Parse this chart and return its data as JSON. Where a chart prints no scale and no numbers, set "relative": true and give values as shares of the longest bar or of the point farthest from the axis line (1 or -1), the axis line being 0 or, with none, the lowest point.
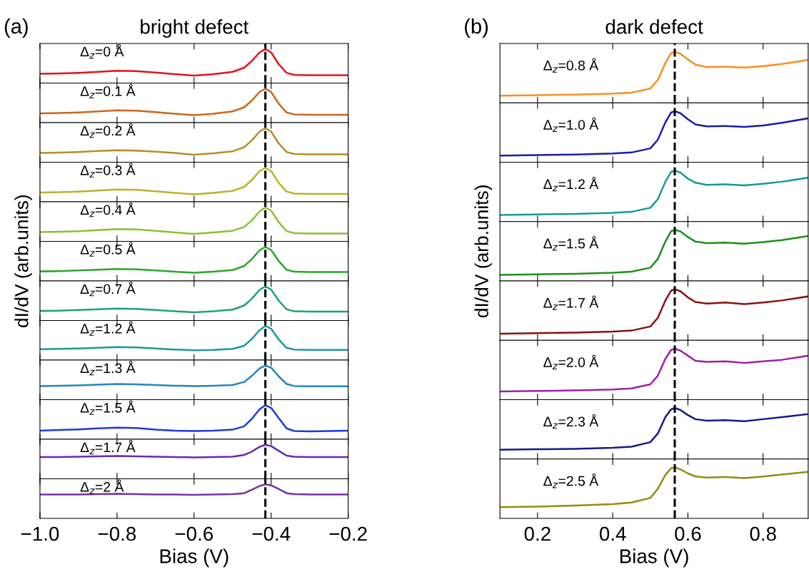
{
  "chart_data": [
    {
      "type": "line",
      "title": "(a)",
      "subtitle": "bright defect",
      "relative": true,
      "color": "#e3141c",
      "annotations": [
        "Δ$_{z}$=0 Å"
      ],
      "tick_labels": false,
      "xlim": [
        -1.0,
        -0.2
      ],
      "xticks": [
        {
          "value": -1.0,
          "label": null
        },
        {
          "value": -0.8,
          "label": null
        },
        {
          "value": -0.6,
          "label": null
        },
        {
          "value": -0.4,
          "label": null
        },
        {
          "value": -0.2,
          "label": null
        }
      ],
      "ref_lines": [
        {
          "axis": "x",
          "value": -0.415,
          "label": null,
          "color": "#000000",
          "line_style": "dashed"
        }
      ],
      "x": [
        -1.0,
        -0.95,
        -0.9,
        -0.85,
        -0.8,
        -0.75,
        -0.7,
        -0.65,
        -0.6,
        -0.55,
        -0.5,
        -0.47,
        -0.45,
        -0.43,
        -0.415,
        -0.4,
        -0.38,
        -0.36,
        -0.34,
        -0.3,
        -0.25,
        -0.2
      ],
      "values": [
        0.27,
        0.28,
        0.3,
        0.33,
        0.36,
        0.35,
        0.31,
        0.26,
        0.22,
        0.26,
        0.33,
        0.45,
        0.65,
        0.9,
        1.0,
        0.9,
        0.55,
        0.3,
        0.24,
        0.23,
        0.23,
        0.23
      ]
    },
    {
      "type": "line",
      "relative": true,
      "color": "#c8681e",
      "annotations": [
        "Δ$_{z}$=0.1 Å"
      ],
      "tick_labels": false,
      "xlim": [
        -1.0,
        -0.2
      ],
      "xticks": [
        {
          "value": -1.0,
          "label": null
        },
        {
          "value": -0.8,
          "label": null
        },
        {
          "value": -0.6,
          "label": null
        },
        {
          "value": -0.4,
          "label": null
        },
        {
          "value": -0.2,
          "label": null
        }
      ],
      "ref_lines": [
        {
          "axis": "x",
          "value": -0.415,
          "label": null,
          "color": "#000000",
          "line_style": "dashed"
        }
      ],
      "x": [
        -1.0,
        -0.95,
        -0.9,
        -0.85,
        -0.8,
        -0.75,
        -0.7,
        -0.65,
        -0.6,
        -0.55,
        -0.5,
        -0.47,
        -0.45,
        -0.43,
        -0.415,
        -0.4,
        -0.38,
        -0.36,
        -0.34,
        -0.3,
        -0.25,
        -0.2
      ],
      "values": [
        0.27,
        0.28,
        0.3,
        0.33,
        0.36,
        0.35,
        0.31,
        0.26,
        0.22,
        0.26,
        0.33,
        0.45,
        0.65,
        0.9,
        1.0,
        0.9,
        0.55,
        0.3,
        0.24,
        0.23,
        0.23,
        0.23
      ]
    },
    {
      "type": "line",
      "relative": true,
      "color": "#b88c2a",
      "annotations": [
        "Δ$_{z}$=0.2 Å"
      ],
      "tick_labels": false,
      "xlim": [
        -1.0,
        -0.2
      ],
      "xticks": [
        {
          "value": -1.0,
          "label": null
        },
        {
          "value": -0.8,
          "label": null
        },
        {
          "value": -0.6,
          "label": null
        },
        {
          "value": -0.4,
          "label": null
        },
        {
          "value": -0.2,
          "label": null
        }
      ],
      "ref_lines": [
        {
          "axis": "x",
          "value": -0.415,
          "label": null,
          "color": "#000000",
          "line_style": "dashed"
        }
      ],
      "x": [
        -1.0,
        -0.95,
        -0.9,
        -0.85,
        -0.8,
        -0.75,
        -0.7,
        -0.65,
        -0.6,
        -0.55,
        -0.5,
        -0.47,
        -0.45,
        -0.43,
        -0.415,
        -0.4,
        -0.38,
        -0.36,
        -0.34,
        -0.3,
        -0.25,
        -0.2
      ],
      "values": [
        0.27,
        0.28,
        0.3,
        0.33,
        0.35,
        0.34,
        0.31,
        0.27,
        0.22,
        0.26,
        0.32,
        0.44,
        0.64,
        0.9,
        1.0,
        0.9,
        0.55,
        0.3,
        0.24,
        0.23,
        0.23,
        0.23
      ]
    },
    {
      "type": "line",
      "relative": true,
      "color": "#b8b428",
      "annotations": [
        "Δ$_{z}$=0.3 Å"
      ],
      "tick_labels": false,
      "xlim": [
        -1.0,
        -0.2
      ],
      "xticks": [
        {
          "value": -1.0,
          "label": null
        },
        {
          "value": -0.8,
          "label": null
        },
        {
          "value": -0.6,
          "label": null
        },
        {
          "value": -0.4,
          "label": null
        },
        {
          "value": -0.2,
          "label": null
        }
      ],
      "ref_lines": [
        {
          "axis": "x",
          "value": -0.415,
          "label": null,
          "color": "#000000",
          "line_style": "dashed"
        }
      ],
      "x": [
        -1.0,
        -0.95,
        -0.9,
        -0.85,
        -0.8,
        -0.75,
        -0.7,
        -0.65,
        -0.6,
        -0.55,
        -0.5,
        -0.47,
        -0.45,
        -0.43,
        -0.415,
        -0.4,
        -0.38,
        -0.36,
        -0.34,
        -0.3,
        -0.25,
        -0.2
      ],
      "values": [
        0.27,
        0.28,
        0.3,
        0.33,
        0.36,
        0.35,
        0.31,
        0.26,
        0.22,
        0.26,
        0.32,
        0.44,
        0.64,
        0.9,
        1.0,
        0.9,
        0.55,
        0.3,
        0.24,
        0.23,
        0.23,
        0.23
      ]
    },
    {
      "type": "line",
      "relative": true,
      "color": "#8cc032",
      "annotations": [
        "Δ$_{z}$=0.4 Å"
      ],
      "tick_labels": false,
      "xlim": [
        -1.0,
        -0.2
      ],
      "xticks": [
        {
          "value": -1.0,
          "label": null
        },
        {
          "value": -0.8,
          "label": null
        },
        {
          "value": -0.6,
          "label": null
        },
        {
          "value": -0.4,
          "label": null
        },
        {
          "value": -0.2,
          "label": null
        }
      ],
      "ref_lines": [
        {
          "axis": "x",
          "value": -0.415,
          "label": null,
          "color": "#000000",
          "line_style": "dashed"
        }
      ],
      "x": [
        -1.0,
        -0.95,
        -0.9,
        -0.85,
        -0.8,
        -0.75,
        -0.7,
        -0.65,
        -0.6,
        -0.55,
        -0.5,
        -0.47,
        -0.45,
        -0.43,
        -0.415,
        -0.4,
        -0.38,
        -0.36,
        -0.34,
        -0.3,
        -0.25,
        -0.2
      ],
      "values": [
        0.27,
        0.28,
        0.3,
        0.33,
        0.36,
        0.35,
        0.31,
        0.26,
        0.22,
        0.26,
        0.31,
        0.42,
        0.62,
        0.88,
        1.0,
        0.9,
        0.56,
        0.3,
        0.24,
        0.23,
        0.23,
        0.23
      ]
    },
    {
      "type": "line",
      "ylabel": "dI/dV (arb.units)",
      "relative": true,
      "color": "#2aa82a",
      "annotations": [
        "Δ$_{z}$=0.5 Å"
      ],
      "tick_labels": false,
      "xlim": [
        -1.0,
        -0.2
      ],
      "xticks": [
        {
          "value": -1.0,
          "label": null
        },
        {
          "value": -0.8,
          "label": null
        },
        {
          "value": -0.6,
          "label": null
        },
        {
          "value": -0.4,
          "label": null
        },
        {
          "value": -0.2,
          "label": null
        }
      ],
      "ref_lines": [
        {
          "axis": "x",
          "value": -0.415,
          "label": null,
          "color": "#000000",
          "line_style": "dashed"
        }
      ],
      "x": [
        -1.0,
        -0.95,
        -0.9,
        -0.85,
        -0.8,
        -0.75,
        -0.7,
        -0.65,
        -0.6,
        -0.55,
        -0.5,
        -0.47,
        -0.45,
        -0.43,
        -0.415,
        -0.4,
        -0.38,
        -0.36,
        -0.34,
        -0.3,
        -0.25,
        -0.2
      ],
      "values": [
        0.28,
        0.29,
        0.31,
        0.33,
        0.35,
        0.34,
        0.31,
        0.27,
        0.24,
        0.27,
        0.32,
        0.44,
        0.64,
        0.9,
        1.0,
        0.91,
        0.58,
        0.33,
        0.27,
        0.26,
        0.26,
        0.26
      ]
    },
    {
      "type": "line",
      "relative": true,
      "color": "#20a080",
      "annotations": [
        "Δ$_{z}$=0.7 Å"
      ],
      "tick_labels": false,
      "xlim": [
        -1.0,
        -0.2
      ],
      "xticks": [
        {
          "value": -1.0,
          "label": null
        },
        {
          "value": -0.8,
          "label": null
        },
        {
          "value": -0.6,
          "label": null
        },
        {
          "value": -0.4,
          "label": null
        },
        {
          "value": -0.2,
          "label": null
        }
      ],
      "ref_lines": [
        {
          "axis": "x",
          "value": -0.415,
          "label": null,
          "color": "#000000",
          "line_style": "dashed"
        }
      ],
      "x": [
        -1.0,
        -0.95,
        -0.9,
        -0.85,
        -0.8,
        -0.75,
        -0.7,
        -0.65,
        -0.6,
        -0.55,
        -0.5,
        -0.47,
        -0.45,
        -0.43,
        -0.415,
        -0.4,
        -0.38,
        -0.36,
        -0.34,
        -0.3,
        -0.25,
        -0.2
      ],
      "values": [
        0.28,
        0.29,
        0.31,
        0.33,
        0.35,
        0.34,
        0.31,
        0.27,
        0.24,
        0.27,
        0.32,
        0.44,
        0.64,
        0.9,
        1.0,
        0.91,
        0.58,
        0.33,
        0.27,
        0.26,
        0.26,
        0.26
      ]
    },
    {
      "type": "line",
      "relative": true,
      "color": "#1e9898",
      "annotations": [
        "Δ$_{z}$=1.2 Å"
      ],
      "tick_labels": false,
      "xlim": [
        -1.0,
        -0.2
      ],
      "xticks": [
        {
          "value": -1.0,
          "label": null
        },
        {
          "value": -0.8,
          "label": null
        },
        {
          "value": -0.6,
          "label": null
        },
        {
          "value": -0.4,
          "label": null
        },
        {
          "value": -0.2,
          "label": null
        }
      ],
      "ref_lines": [
        {
          "axis": "x",
          "value": -0.415,
          "label": null,
          "color": "#000000",
          "line_style": "dashed"
        }
      ],
      "x": [
        -1.0,
        -0.95,
        -0.9,
        -0.85,
        -0.8,
        -0.75,
        -0.7,
        -0.65,
        -0.6,
        -0.55,
        -0.5,
        -0.47,
        -0.45,
        -0.43,
        -0.415,
        -0.4,
        -0.38,
        -0.36,
        -0.34,
        -0.3,
        -0.25,
        -0.2
      ],
      "values": [
        0.32,
        0.33,
        0.34,
        0.36,
        0.38,
        0.37,
        0.34,
        0.31,
        0.29,
        0.3,
        0.33,
        0.42,
        0.62,
        0.88,
        1.0,
        0.92,
        0.6,
        0.36,
        0.31,
        0.3,
        0.3,
        0.3
      ]
    },
    {
      "type": "line",
      "relative": true,
      "color": "#2088c0",
      "annotations": [
        "Δ$_{z}$=1.3 Å"
      ],
      "tick_labels": false,
      "xlim": [
        -1.0,
        -0.2
      ],
      "xticks": [
        {
          "value": -1.0,
          "label": null
        },
        {
          "value": -0.8,
          "label": null
        },
        {
          "value": -0.6,
          "label": null
        },
        {
          "value": -0.4,
          "label": null
        },
        {
          "value": -0.2,
          "label": null
        }
      ],
      "ref_lines": [
        {
          "axis": "x",
          "value": -0.415,
          "label": null,
          "color": "#000000",
          "line_style": "dashed"
        }
      ],
      "x": [
        -1.0,
        -0.95,
        -0.9,
        -0.85,
        -0.8,
        -0.75,
        -0.7,
        -0.65,
        -0.6,
        -0.55,
        -0.5,
        -0.47,
        -0.45,
        -0.43,
        -0.415,
        -0.4,
        -0.38,
        -0.36,
        -0.34,
        -0.3,
        -0.25,
        -0.2
      ],
      "values": [
        0.4,
        0.41,
        0.42,
        0.44,
        0.46,
        0.45,
        0.43,
        0.41,
        0.4,
        0.41,
        0.43,
        0.52,
        0.7,
        0.92,
        1.0,
        0.94,
        0.68,
        0.46,
        0.4,
        0.39,
        0.39,
        0.39
      ]
    },
    {
      "type": "line",
      "relative": true,
      "color": "#1a3ae0",
      "annotations": [
        "Δ$_{z}$=1.5 Å"
      ],
      "tick_labels": false,
      "xlim": [
        -1.0,
        -0.2
      ],
      "xticks": [
        {
          "value": -1.0,
          "label": null
        },
        {
          "value": -0.8,
          "label": null
        },
        {
          "value": -0.6,
          "label": null
        },
        {
          "value": -0.4,
          "label": null
        },
        {
          "value": -0.2,
          "label": null
        }
      ],
      "ref_lines": [
        {
          "axis": "x",
          "value": -0.415,
          "label": null,
          "color": "#000000",
          "line_style": "dashed"
        }
      ],
      "x": [
        -1.0,
        -0.95,
        -0.9,
        -0.85,
        -0.8,
        -0.75,
        -0.7,
        -0.65,
        -0.6,
        -0.55,
        -0.5,
        -0.47,
        -0.45,
        -0.43,
        -0.415,
        -0.4,
        -0.38,
        -0.36,
        -0.34,
        -0.3,
        -0.25,
        -0.2
      ],
      "values": [
        0.25,
        0.27,
        0.29,
        0.32,
        0.34,
        0.33,
        0.28,
        0.25,
        0.24,
        0.25,
        0.28,
        0.38,
        0.6,
        0.88,
        1.0,
        0.92,
        0.62,
        0.32,
        0.24,
        0.23,
        0.24,
        0.25
      ]
    },
    {
      "type": "line",
      "relative": true,
      "color": "#6a28b0",
      "annotations": [
        "Δ$_{z}$=1.7 Å"
      ],
      "tick_labels": false,
      "xlim": [
        -1.0,
        -0.2
      ],
      "xticks": [
        {
          "value": -1.0,
          "label": null
        },
        {
          "value": -0.8,
          "label": null
        },
        {
          "value": -0.6,
          "label": null
        },
        {
          "value": -0.4,
          "label": null
        },
        {
          "value": -0.2,
          "label": null
        }
      ],
      "ref_lines": [
        {
          "axis": "x",
          "value": -0.415,
          "label": null,
          "color": "#000000",
          "line_style": "dashed"
        }
      ],
      "x": [
        -1.0,
        -0.95,
        -0.9,
        -0.85,
        -0.8,
        -0.75,
        -0.7,
        -0.65,
        -0.6,
        -0.55,
        -0.5,
        -0.47,
        -0.45,
        -0.43,
        -0.415,
        -0.4,
        -0.38,
        -0.36,
        -0.34,
        -0.3,
        -0.25,
        -0.2
      ],
      "values": [
        0.64,
        0.64,
        0.65,
        0.66,
        0.67,
        0.66,
        0.65,
        0.64,
        0.63,
        0.64,
        0.65,
        0.7,
        0.8,
        0.94,
        1.0,
        0.96,
        0.82,
        0.68,
        0.65,
        0.64,
        0.64,
        0.64
      ]
    },
    {
      "type": "line",
      "relative": true,
      "color": "#7a2ea8",
      "annotations": [
        "Δ$_{z}$=2 Å"
      ],
      "tick_labels": "x",
      "xlabel": "Bias (V)",
      "xlim": [
        -1.0,
        -0.2
      ],
      "xticks": [
        {
          "value": -1.0,
          "label": "−1.0"
        },
        {
          "value": -0.8,
          "label": "−0.8"
        },
        {
          "value": -0.6,
          "label": "−0.6"
        },
        {
          "value": -0.4,
          "label": "−0.4"
        },
        {
          "value": -0.2,
          "label": "−0.2"
        }
      ],
      "ref_lines": [
        {
          "axis": "x",
          "value": -0.415,
          "label": null,
          "color": "#000000",
          "line_style": "dashed"
        }
      ],
      "x": [
        -1.0,
        -0.95,
        -0.9,
        -0.85,
        -0.8,
        -0.75,
        -0.7,
        -0.65,
        -0.6,
        -0.55,
        -0.5,
        -0.47,
        -0.45,
        -0.43,
        -0.415,
        -0.4,
        -0.38,
        -0.36,
        -0.34,
        -0.3,
        -0.25,
        -0.2
      ],
      "values": [
        0.7,
        0.7,
        0.7,
        0.71,
        0.72,
        0.71,
        0.7,
        0.7,
        0.69,
        0.7,
        0.71,
        0.74,
        0.84,
        0.95,
        1.0,
        0.97,
        0.86,
        0.74,
        0.71,
        0.7,
        0.7,
        0.7
      ]
    },
    {
      "type": "line",
      "title": "(b)",
      "subtitle": "dark defect",
      "relative": true,
      "color": "#f8901c",
      "annotations": [
        "Δ$_{z}$=0.8 Å"
      ],
      "tick_labels": false,
      "xlim": [
        0.1,
        0.92
      ],
      "xticks": [
        {
          "value": 0.2,
          "label": null
        },
        {
          "value": 0.4,
          "label": null
        },
        {
          "value": 0.6,
          "label": null
        },
        {
          "value": 0.8,
          "label": null
        }
      ],
      "ref_lines": [
        {
          "axis": "x",
          "value": 0.565,
          "label": null,
          "color": "#000000",
          "line_style": "dashed"
        }
      ],
      "x": [
        0.1,
        0.2,
        0.3,
        0.4,
        0.45,
        0.5,
        0.52,
        0.54,
        0.555,
        0.565,
        0.58,
        0.6,
        0.62,
        0.65,
        0.7,
        0.75,
        0.8,
        0.85,
        0.92
      ],
      "values": [
        0.14,
        0.15,
        0.16,
        0.18,
        0.2,
        0.28,
        0.45,
        0.78,
        0.97,
        1.0,
        0.96,
        0.85,
        0.75,
        0.7,
        0.71,
        0.69,
        0.72,
        0.76,
        0.84
      ]
    },
    {
      "type": "line",
      "relative": true,
      "color": "#1c1ca8",
      "annotations": [
        "Δ$_{z}$=1.0 Å"
      ],
      "tick_labels": false,
      "xlim": [
        0.1,
        0.92
      ],
      "xticks": [
        {
          "value": 0.2,
          "label": null
        },
        {
          "value": 0.4,
          "label": null
        },
        {
          "value": 0.6,
          "label": null
        },
        {
          "value": 0.8,
          "label": null
        }
      ],
      "ref_lines": [
        {
          "axis": "x",
          "value": 0.565,
          "label": null,
          "color": "#000000",
          "line_style": "dashed"
        }
      ],
      "x": [
        0.1,
        0.2,
        0.3,
        0.4,
        0.45,
        0.5,
        0.52,
        0.54,
        0.555,
        0.565,
        0.58,
        0.6,
        0.62,
        0.65,
        0.7,
        0.75,
        0.8,
        0.85,
        0.92
      ],
      "values": [
        0.13,
        0.14,
        0.15,
        0.17,
        0.19,
        0.27,
        0.44,
        0.78,
        0.97,
        1.0,
        0.96,
        0.84,
        0.74,
        0.7,
        0.71,
        0.69,
        0.72,
        0.77,
        0.86
      ]
    },
    {
      "type": "line",
      "relative": true,
      "color": "#189898",
      "annotations": [
        "Δ$_{z}$=1.2 Å"
      ],
      "tick_labels": false,
      "xlim": [
        0.1,
        0.92
      ],
      "xticks": [
        {
          "value": 0.2,
          "label": null
        },
        {
          "value": 0.4,
          "label": null
        },
        {
          "value": 0.6,
          "label": null
        },
        {
          "value": 0.8,
          "label": null
        }
      ],
      "ref_lines": [
        {
          "axis": "x",
          "value": 0.565,
          "label": null,
          "color": "#000000",
          "line_style": "dashed"
        }
      ],
      "x": [
        0.1,
        0.2,
        0.3,
        0.4,
        0.45,
        0.5,
        0.52,
        0.54,
        0.555,
        0.565,
        0.58,
        0.6,
        0.62,
        0.65,
        0.7,
        0.75,
        0.8,
        0.85,
        0.92
      ],
      "values": [
        0.13,
        0.14,
        0.15,
        0.17,
        0.19,
        0.27,
        0.44,
        0.78,
        0.97,
        1.0,
        0.96,
        0.84,
        0.76,
        0.72,
        0.73,
        0.71,
        0.74,
        0.78,
        0.86
      ]
    },
    {
      "type": "line",
      "ylabel": "dI/dV (arb.units)",
      "relative": true,
      "color": "#1a901a",
      "annotations": [
        "Δ$_{z}$=1.5 Å"
      ],
      "tick_labels": false,
      "xlim": [
        0.1,
        0.92
      ],
      "xticks": [
        {
          "value": 0.2,
          "label": null
        },
        {
          "value": 0.4,
          "label": null
        },
        {
          "value": 0.6,
          "label": null
        },
        {
          "value": 0.8,
          "label": null
        }
      ],
      "ref_lines": [
        {
          "axis": "x",
          "value": 0.565,
          "label": null,
          "color": "#000000",
          "line_style": "dashed"
        }
      ],
      "x": [
        0.1,
        0.2,
        0.3,
        0.4,
        0.45,
        0.5,
        0.52,
        0.54,
        0.555,
        0.565,
        0.58,
        0.6,
        0.62,
        0.65,
        0.7,
        0.75,
        0.8,
        0.85,
        0.92
      ],
      "values": [
        0.12,
        0.13,
        0.14,
        0.16,
        0.18,
        0.26,
        0.43,
        0.77,
        0.97,
        1.0,
        0.97,
        0.86,
        0.77,
        0.74,
        0.75,
        0.73,
        0.76,
        0.8,
        0.88
      ]
    },
    {
      "type": "line",
      "relative": true,
      "color": "#8c1010",
      "annotations": [
        "Δ$_{z}$=1.7 Å"
      ],
      "tick_labels": false,
      "xlim": [
        0.1,
        0.92
      ],
      "xticks": [
        {
          "value": 0.2,
          "label": null
        },
        {
          "value": 0.4,
          "label": null
        },
        {
          "value": 0.6,
          "label": null
        },
        {
          "value": 0.8,
          "label": null
        }
      ],
      "ref_lines": [
        {
          "axis": "x",
          "value": 0.565,
          "label": null,
          "color": "#000000",
          "line_style": "dashed"
        }
      ],
      "x": [
        0.1,
        0.2,
        0.3,
        0.4,
        0.45,
        0.5,
        0.52,
        0.54,
        0.555,
        0.565,
        0.58,
        0.6,
        0.62,
        0.65,
        0.7,
        0.75,
        0.8,
        0.85,
        0.92
      ],
      "values": [
        0.13,
        0.14,
        0.15,
        0.17,
        0.19,
        0.27,
        0.44,
        0.78,
        0.97,
        1.0,
        0.96,
        0.84,
        0.75,
        0.72,
        0.74,
        0.71,
        0.74,
        0.78,
        0.86
      ]
    },
    {
      "type": "line",
      "relative": true,
      "color": "#a020a8",
      "annotations": [
        "Δ$_{z}$=2.0 Å"
      ],
      "tick_labels": false,
      "xlim": [
        0.1,
        0.92
      ],
      "xticks": [
        {
          "value": 0.2,
          "label": null
        },
        {
          "value": 0.4,
          "label": null
        },
        {
          "value": 0.6,
          "label": null
        },
        {
          "value": 0.8,
          "label": null
        }
      ],
      "ref_lines": [
        {
          "axis": "x",
          "value": 0.565,
          "label": null,
          "color": "#000000",
          "line_style": "dashed"
        }
      ],
      "x": [
        0.1,
        0.2,
        0.3,
        0.4,
        0.45,
        0.5,
        0.52,
        0.54,
        0.555,
        0.565,
        0.58,
        0.6,
        0.62,
        0.65,
        0.7,
        0.75,
        0.8,
        0.85,
        0.92
      ],
      "values": [
        0.16,
        0.17,
        0.18,
        0.2,
        0.22,
        0.3,
        0.47,
        0.8,
        0.97,
        1.0,
        0.96,
        0.86,
        0.76,
        0.74,
        0.75,
        0.72,
        0.75,
        0.78,
        0.86
      ]
    },
    {
      "type": "line",
      "relative": true,
      "color": "#181890",
      "annotations": [
        "Δ$_{z}$=2.3 Å"
      ],
      "tick_labels": false,
      "xlim": [
        0.1,
        0.92
      ],
      "xticks": [
        {
          "value": 0.2,
          "label": null
        },
        {
          "value": 0.4,
          "label": null
        },
        {
          "value": 0.6,
          "label": null
        },
        {
          "value": 0.8,
          "label": null
        }
      ],
      "ref_lines": [
        {
          "axis": "x",
          "value": 0.565,
          "label": null,
          "color": "#000000",
          "line_style": "dashed"
        }
      ],
      "x": [
        0.1,
        0.2,
        0.3,
        0.4,
        0.45,
        0.5,
        0.52,
        0.54,
        0.555,
        0.565,
        0.58,
        0.6,
        0.62,
        0.65,
        0.7,
        0.75,
        0.8,
        0.85,
        0.92
      ],
      "values": [
        0.18,
        0.19,
        0.2,
        0.22,
        0.24,
        0.33,
        0.5,
        0.82,
        0.97,
        1.0,
        0.96,
        0.86,
        0.78,
        0.75,
        0.76,
        0.74,
        0.78,
        0.82,
        0.88
      ]
    },
    {
      "type": "line",
      "relative": true,
      "color": "#8e8e12",
      "annotations": [
        "Δ$_{z}$=2.5 Å"
      ],
      "tick_labels": "x",
      "xlabel": "Bias (V)",
      "xlim": [
        0.1,
        0.92
      ],
      "xticks": [
        0.2,
        0.4,
        0.6,
        0.8
      ],
      "ref_lines": [
        {
          "axis": "x",
          "value": 0.565,
          "label": null,
          "color": "#000000",
          "line_style": "dashed"
        }
      ],
      "x": [
        0.1,
        0.2,
        0.3,
        0.4,
        0.45,
        0.5,
        0.52,
        0.54,
        0.555,
        0.565,
        0.58,
        0.6,
        0.62,
        0.65,
        0.7,
        0.75,
        0.8,
        0.85,
        0.92
      ],
      "values": [
        0.22,
        0.23,
        0.25,
        0.28,
        0.31,
        0.4,
        0.58,
        0.85,
        0.98,
        1.0,
        0.96,
        0.88,
        0.82,
        0.8,
        0.81,
        0.79,
        0.82,
        0.86,
        0.91
      ]
    }
  ]
}
